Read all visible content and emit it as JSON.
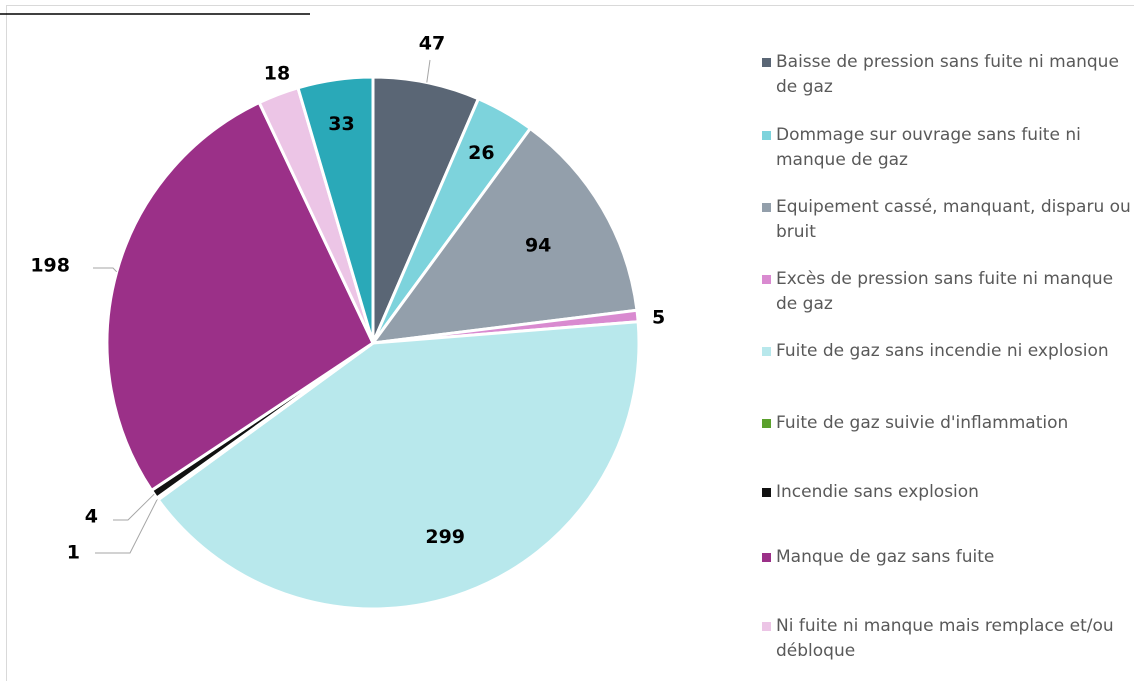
{
  "chart_data": {
    "type": "pie",
    "categories": [
      "Baisse de pression sans fuite ni manque de gaz",
      "Dommage sur ouvrage sans fuite ni manque de gaz",
      "Equipement cassé, manquant, disparu ou bruit",
      "Excès de pression sans fuite ni manque de gaz",
      "Fuite de gaz sans incendie ni explosion",
      "Fuite de gaz suivie d'inflammation",
      "Incendie sans explosion",
      "Manque de gaz sans fuite",
      "Ni fuite ni manque mais remplace et/ou débloque",
      null
    ],
    "values": [
      47,
      26,
      94,
      5,
      299,
      1,
      4,
      198,
      18,
      33
    ],
    "colors": [
      "#5a6675",
      "#7dd3dc",
      "#939fab",
      "#d98ad0",
      "#b8e8ec",
      "#5aa02c",
      "#111111",
      "#9b3088",
      "#ecc5e6",
      "#2aa9b8"
    ],
    "legend": "right"
  }
}
